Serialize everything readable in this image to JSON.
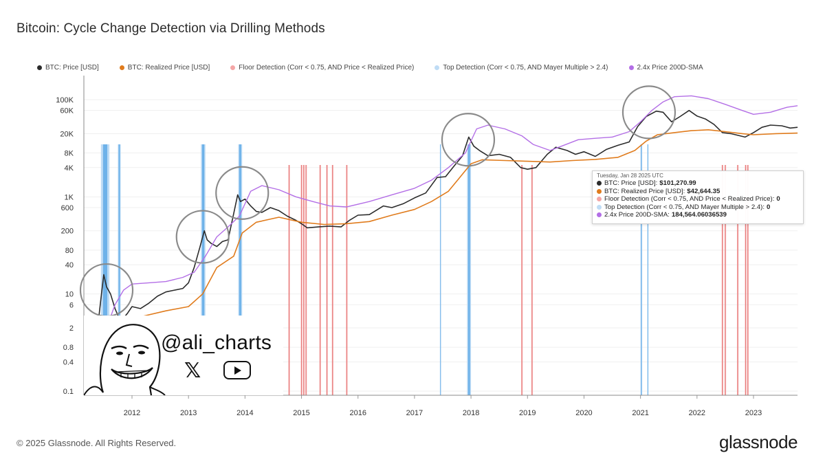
{
  "page": {
    "title": "Bitcoin: Cycle Change Detection via Drilling Methods",
    "copyright": "© 2025 Glassnode. All Rights Reserved.",
    "brand": "glassnode",
    "watermark": {
      "handle": "@ali_charts",
      "icons": [
        "x-logo-icon",
        "youtube-icon",
        "meme-face-icon"
      ],
      "x_glyph": "𝕏"
    }
  },
  "colors": {
    "price": "#2b2b2b",
    "realized": "#e07b1c",
    "floor": "#f4a6a6",
    "floor_line": "#e06666",
    "top": "#bfdcf5",
    "top_line": "#5aa7e6",
    "sma": "#b36ee6",
    "grid": "#efefef",
    "circle": "#8a8a8a"
  },
  "tooltip": {
    "date": "Tuesday, Jan 28 2025 UTC",
    "rows": [
      {
        "label": "BTC: Price [USD]:",
        "value": "$101,270.99",
        "color": "#2b2b2b"
      },
      {
        "label": "BTC: Realized Price [USD]:",
        "value": "$42,644.35",
        "color": "#e07b1c"
      },
      {
        "label": "Floor Detection (Corr < 0.75, AND Price < Realized Price):",
        "value": "0",
        "color": "#f4a6a6"
      },
      {
        "label": "Top Detection (Corr < 0.75, AND Mayer Multiple > 2.4):",
        "value": "0",
        "color": "#bfdcf5"
      },
      {
        "label": "2.4x Price 200D-SMA:",
        "value": "184,564.06036539",
        "color": "#b36ee6"
      }
    ]
  },
  "chart_data": {
    "type": "line",
    "title": "Bitcoin: Cycle Change Detection via Drilling Methods",
    "xlabel": "",
    "ylabel": "",
    "yscale": "log",
    "ylim": [
      0.07,
      200000
    ],
    "xlim": [
      2011.25,
      2023.8
    ],
    "grid": true,
    "legend_position": "top-left",
    "x_ticks": [
      "2012",
      "2013",
      "2014",
      "2015",
      "2016",
      "2017",
      "2018",
      "2019",
      "2020",
      "2021",
      "2022",
      "2023"
    ],
    "y_ticks": [
      {
        "value": 0.1,
        "label": "0.1"
      },
      {
        "value": 0.4,
        "label": "0.4"
      },
      {
        "value": 0.8,
        "label": "0.8"
      },
      {
        "value": 2,
        "label": "2"
      },
      {
        "value": 6,
        "label": "6"
      },
      {
        "value": 10,
        "label": "10"
      },
      {
        "value": 40,
        "label": "40"
      },
      {
        "value": 80,
        "label": "80"
      },
      {
        "value": 200,
        "label": "200"
      },
      {
        "value": 600,
        "label": "600"
      },
      {
        "value": 1000,
        "label": "1K"
      },
      {
        "value": 4000,
        "label": "4K"
      },
      {
        "value": 8000,
        "label": "8K"
      },
      {
        "value": 20000,
        "label": "20K"
      },
      {
        "value": 60000,
        "label": "60K"
      },
      {
        "value": 100000,
        "label": "100K"
      }
    ],
    "legend": [
      {
        "name": "BTC: Price [USD]",
        "color": "#2b2b2b"
      },
      {
        "name": "BTC: Realized Price [USD]",
        "color": "#e07b1c"
      },
      {
        "name": "Floor Detection (Corr < 0.75, AND Price < Realized Price)",
        "color": "#f4a6a6"
      },
      {
        "name": "Top Detection (Corr < 0.75, AND Mayer Multiple > 2.4)",
        "color": "#bfdcf5"
      },
      {
        "name": "2.4x Price 200D-SMA",
        "color": "#b36ee6"
      }
    ],
    "series": [
      {
        "name": "BTC: Price [USD]",
        "x": [
          2011.3,
          2011.38,
          2011.45,
          2011.5,
          2011.55,
          2011.62,
          2011.7,
          2011.78,
          2011.85,
          2011.92,
          2012.0,
          2012.15,
          2012.3,
          2012.45,
          2012.6,
          2012.75,
          2012.9,
          2013.0,
          2013.1,
          2013.2,
          2013.28,
          2013.33,
          2013.4,
          2013.5,
          2013.6,
          2013.7,
          2013.8,
          2013.87,
          2013.92,
          2014.0,
          2014.1,
          2014.2,
          2014.3,
          2014.45,
          2014.6,
          2014.75,
          2014.9,
          2015.0,
          2015.1,
          2015.3,
          2015.5,
          2015.7,
          2015.85,
          2016.0,
          2016.2,
          2016.45,
          2016.6,
          2016.8,
          2017.0,
          2017.2,
          2017.4,
          2017.55,
          2017.7,
          2017.85,
          2017.96,
          2018.05,
          2018.15,
          2018.3,
          2018.5,
          2018.7,
          2018.88,
          2019.0,
          2019.15,
          2019.35,
          2019.5,
          2019.7,
          2019.85,
          2020.0,
          2020.2,
          2020.4,
          2020.6,
          2020.8,
          2020.95,
          2021.1,
          2021.28,
          2021.4,
          2021.55,
          2021.7,
          2021.86,
          2022.0,
          2022.15,
          2022.3,
          2022.45,
          2022.6,
          2022.85,
          2023.0,
          2023.15,
          2023.3,
          2023.5,
          2023.65,
          2023.78
        ],
        "values": [
          0.8,
          1.5,
          8,
          25,
          14,
          10,
          5,
          3,
          3.2,
          4,
          5.5,
          5,
          6.5,
          9,
          11,
          12,
          13,
          17,
          35,
          90,
          200,
          130,
          110,
          95,
          120,
          130,
          450,
          1100,
          800,
          900,
          650,
          500,
          480,
          600,
          520,
          400,
          330,
          280,
          230,
          240,
          250,
          240,
          330,
          420,
          430,
          650,
          600,
          720,
          950,
          1200,
          2500,
          2600,
          4300,
          7000,
          17000,
          11000,
          9000,
          7000,
          7500,
          6500,
          4000,
          3700,
          4000,
          7500,
          10500,
          9000,
          7500,
          8500,
          6800,
          9500,
          11500,
          13500,
          28000,
          45000,
          58000,
          55000,
          35000,
          45000,
          60000,
          46000,
          40000,
          31000,
          21000,
          20000,
          17000,
          21000,
          27000,
          30000,
          29000,
          26000,
          27000
        ]
      },
      {
        "name": "BTC: Realized Price [USD]",
        "x": [
          2011.3,
          2011.6,
          2011.9,
          2012.2,
          2012.6,
          2013.0,
          2013.25,
          2013.5,
          2013.8,
          2013.95,
          2014.2,
          2014.6,
          2015.0,
          2015.4,
          2015.8,
          2016.2,
          2016.6,
          2017.0,
          2017.3,
          2017.6,
          2017.8,
          2018.0,
          2018.2,
          2018.6,
          2019.0,
          2019.4,
          2019.8,
          2020.2,
          2020.6,
          2020.9,
          2021.1,
          2021.3,
          2021.6,
          2021.9,
          2022.2,
          2022.5,
          2022.8,
          2023.0,
          2023.4,
          2023.78
        ],
        "values": [
          0.4,
          1.2,
          2.5,
          3.5,
          4.5,
          5.5,
          10,
          35,
          60,
          180,
          300,
          380,
          300,
          270,
          280,
          310,
          420,
          550,
          800,
          1300,
          2500,
          4800,
          5800,
          5600,
          5400,
          5200,
          5600,
          5900,
          6500,
          9000,
          14000,
          19000,
          21000,
          23000,
          24000,
          22000,
          20000,
          19000,
          20000,
          20500
        ]
      },
      {
        "name": "2.4x Price 200D-SMA",
        "x": [
          2011.55,
          2011.7,
          2011.85,
          2012.0,
          2012.3,
          2012.6,
          2012.9,
          2013.1,
          2013.3,
          2013.5,
          2013.7,
          2013.9,
          2014.1,
          2014.3,
          2014.6,
          2014.9,
          2015.2,
          2015.5,
          2015.8,
          2016.2,
          2016.6,
          2017.0,
          2017.3,
          2017.6,
          2017.9,
          2018.1,
          2018.3,
          2018.6,
          2018.9,
          2019.1,
          2019.4,
          2019.6,
          2019.9,
          2020.2,
          2020.5,
          2020.8,
          2021.0,
          2021.2,
          2021.4,
          2021.6,
          2021.9,
          2022.2,
          2022.5,
          2022.8,
          2023.0,
          2023.3,
          2023.6,
          2023.78
        ],
        "values": [
          2,
          6,
          12,
          16,
          17,
          18,
          22,
          28,
          60,
          150,
          240,
          400,
          1300,
          1700,
          1400,
          1000,
          800,
          650,
          620,
          800,
          1100,
          1500,
          2200,
          4000,
          8000,
          25000,
          30000,
          25000,
          18000,
          12000,
          9000,
          11000,
          15000,
          16000,
          17000,
          22000,
          35000,
          60000,
          90000,
          115000,
          120000,
          105000,
          80000,
          60000,
          50000,
          55000,
          70000,
          75000
        ]
      }
    ],
    "floor_detection_dates": [
      2014.78,
      2015.0,
      2015.04,
      2015.08,
      2015.33,
      2015.45,
      2015.55,
      2015.8,
      2018.9,
      2019.08,
      2022.45,
      2022.5,
      2022.72,
      2022.86,
      2022.9
    ],
    "top_detection_ranges": [
      [
        2011.45,
        2011.6
      ],
      [
        2011.75,
        2011.8
      ],
      [
        2013.22,
        2013.3
      ],
      [
        2013.88,
        2013.95
      ],
      [
        2017.45,
        2017.46
      ],
      [
        2017.93,
        2018.0
      ],
      [
        2021.0,
        2021.03
      ],
      [
        2021.12,
        2021.14
      ]
    ],
    "annotation_circles": [
      {
        "x": 2011.55,
        "y": 12
      },
      {
        "x": 2013.25,
        "y": 150
      },
      {
        "x": 2013.95,
        "y": 1200
      },
      {
        "x": 2017.95,
        "y": 15000
      },
      {
        "x": 2021.15,
        "y": 55000
      }
    ]
  }
}
